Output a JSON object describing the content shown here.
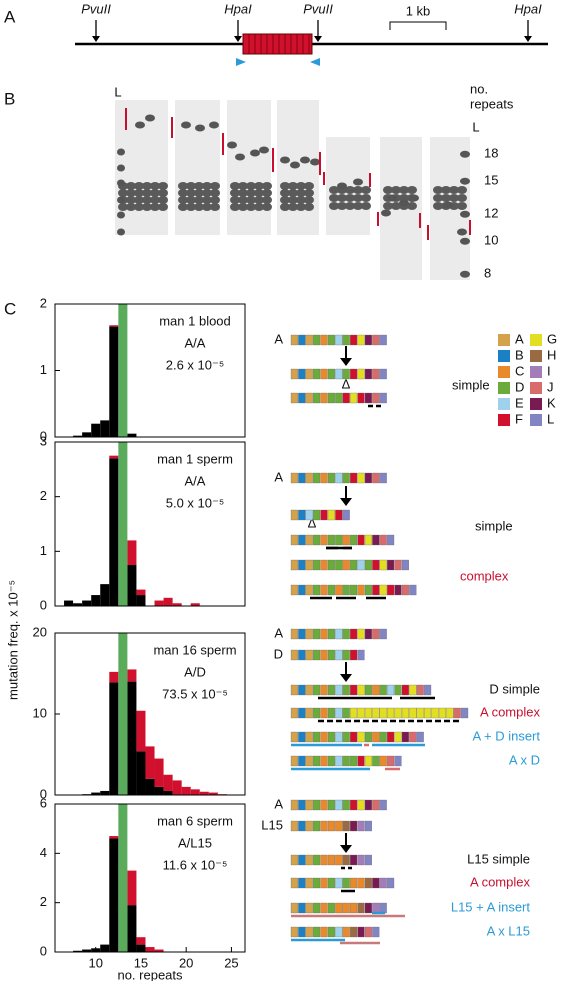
{
  "panel_labels": [
    "A",
    "B",
    "C"
  ],
  "map": {
    "sites": [
      "PvuII",
      "HpaI",
      "PvuII",
      "HpaI"
    ],
    "scale": "1 kb"
  },
  "gel": {
    "ladder_label": "L",
    "axis_title": [
      "no.",
      "repeats"
    ],
    "ticks": [
      18,
      15,
      12,
      10,
      8
    ]
  },
  "legend": [
    {
      "label": "A",
      "color": "#d3a24a"
    },
    {
      "label": "B",
      "color": "#1b80c4"
    },
    {
      "label": "C",
      "color": "#e8892b"
    },
    {
      "label": "D",
      "color": "#6aab3c"
    },
    {
      "label": "E",
      "color": "#9fd0ec"
    },
    {
      "label": "F",
      "color": "#d0102c"
    },
    {
      "label": "G",
      "color": "#e2df22"
    },
    {
      "label": "H",
      "color": "#9a6b42"
    },
    {
      "label": "I",
      "color": "#a37cba"
    },
    {
      "label": "J",
      "color": "#d86c6c"
    },
    {
      "label": "K",
      "color": "#7a1a52"
    },
    {
      "label": "L",
      "color": "#8285c4"
    }
  ],
  "scheme_labels": [
    "A",
    "simple",
    "Δ",
    "A",
    "Δ",
    "simple",
    "complex",
    "A",
    "D",
    "D simple",
    "A complex",
    "A + D insert",
    "A x D",
    "A",
    "L15",
    "L15 simple",
    "A complex",
    "L15 + A insert",
    "A x L15"
  ],
  "ylabel": "mutation freq. x 10⁻⁵",
  "chart_data": [
    {
      "type": "bar",
      "annotation": [
        "man 1 blood",
        "A/A",
        "2.6 x 10⁻⁵"
      ],
      "xlim": [
        5.5,
        26.5
      ],
      "ylim": [
        0,
        2
      ],
      "yticks": [
        0,
        1,
        2
      ],
      "x": [
        7,
        8,
        9,
        10,
        11,
        12,
        13,
        14,
        15,
        16,
        17,
        18,
        19,
        20,
        21,
        22,
        23,
        24
      ],
      "band_x": 13,
      "band_color": "#5aac5c",
      "series": [
        {
          "color": "#000000",
          "values": [
            0,
            0.02,
            0.07,
            0.2,
            0.25,
            1.66,
            0,
            0.05,
            0,
            0,
            0,
            0,
            0,
            0,
            0,
            0,
            0,
            0
          ]
        },
        {
          "color": "#d0102c",
          "values": [
            0,
            0,
            0,
            0,
            0,
            0.02,
            0,
            0,
            0,
            0,
            0,
            0,
            0,
            0,
            0,
            0,
            0,
            0
          ]
        }
      ]
    },
    {
      "type": "bar",
      "annotation": [
        "man 1 sperm",
        "A/A",
        "5.0 x 10⁻⁵"
      ],
      "xlim": [
        5.5,
        26.5
      ],
      "ylim": [
        0,
        3
      ],
      "yticks": [
        0,
        1,
        2,
        3
      ],
      "x": [
        7,
        8,
        9,
        10,
        11,
        12,
        13,
        14,
        15,
        16,
        17,
        18,
        19,
        20,
        21,
        22,
        23,
        24
      ],
      "band_x": 13,
      "band_color": "#5aac5c",
      "series": [
        {
          "color": "#000000",
          "values": [
            0.1,
            0.05,
            0.1,
            0.2,
            0.4,
            2.7,
            0,
            0.75,
            0.2,
            0,
            0,
            0,
            0,
            0,
            0,
            0,
            0,
            0
          ]
        },
        {
          "color": "#d0102c",
          "values": [
            0,
            0,
            0,
            0,
            0,
            0.05,
            0,
            0.45,
            0.1,
            0,
            0.1,
            0.15,
            0.05,
            0,
            0.05,
            0,
            0,
            0
          ]
        }
      ]
    },
    {
      "type": "bar",
      "annotation": [
        "man 16 sperm",
        "A/D",
        "73.5 x 10⁻⁵"
      ],
      "xlim": [
        5.5,
        26.5
      ],
      "ylim": [
        0,
        20
      ],
      "yticks": [
        0,
        10,
        20
      ],
      "x": [
        7,
        8,
        9,
        10,
        11,
        12,
        13,
        14,
        15,
        16,
        17,
        18,
        19,
        20,
        21,
        22,
        23,
        24
      ],
      "band_x": 13,
      "band_color": "#5aac5c",
      "series": [
        {
          "color": "#000000",
          "values": [
            0,
            0,
            0.1,
            0.3,
            0.5,
            13.9,
            0,
            14,
            5.4,
            2,
            1,
            0.5,
            0,
            0,
            0,
            0,
            0,
            0
          ]
        },
        {
          "color": "#d0102c",
          "values": [
            0,
            0,
            0,
            0,
            0,
            1.3,
            0,
            1.5,
            5,
            4,
            3.5,
            2,
            1.8,
            1,
            0.7,
            0.4,
            0.3,
            0.1
          ]
        }
      ]
    },
    {
      "type": "bar",
      "annotation": [
        "man 6 sperm",
        "A/L15",
        "11.6 x 10⁻⁵"
      ],
      "xlim": [
        5.5,
        26.5
      ],
      "ylim": [
        0,
        6
      ],
      "yticks": [
        0,
        2,
        4,
        6
      ],
      "xticks": [
        10,
        15,
        20,
        25
      ],
      "xlabel": "no. repeats",
      "x": [
        7,
        8,
        9,
        10,
        11,
        12,
        13,
        14,
        15,
        16,
        17,
        18,
        19,
        20,
        21,
        22,
        23,
        24
      ],
      "band_x": 13,
      "band_color": "#5aac5c",
      "series": [
        {
          "color": "#000000",
          "values": [
            0,
            0.05,
            0.1,
            0.15,
            0.3,
            4.6,
            0,
            1.9,
            0.3,
            0,
            0,
            0,
            0,
            0,
            0,
            0,
            0,
            0
          ]
        },
        {
          "color": "#d0102c",
          "values": [
            0,
            0,
            0,
            0,
            0,
            0.1,
            0,
            1.4,
            0.3,
            0.2,
            0.1,
            0,
            0,
            0,
            0,
            0,
            0,
            0
          ]
        }
      ]
    }
  ]
}
